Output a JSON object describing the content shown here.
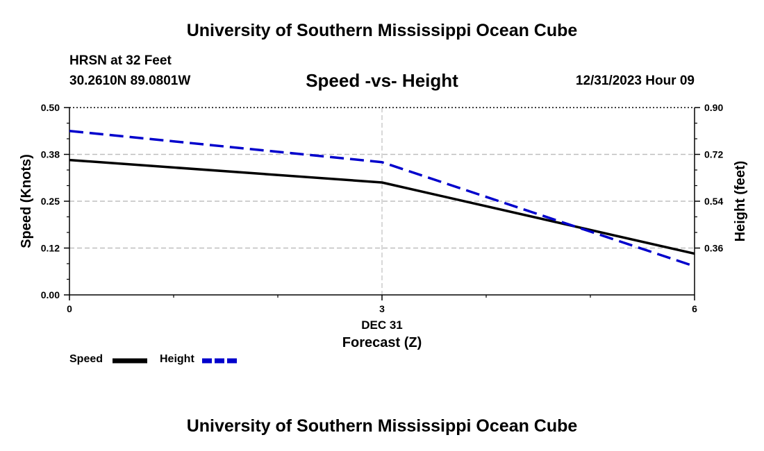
{
  "header": {
    "top_title": "University of Southern Mississippi Ocean Cube",
    "station_name": "HRSN at 32 Feet",
    "station_coords": "30.2610N  89.0801W",
    "subtitle": "Speed -vs- Height",
    "timestamp": "12/31/2023 Hour 09"
  },
  "footer": {
    "bottom_title": "University of Southern Mississippi Ocean Cube"
  },
  "legend": {
    "speed_label": "Speed",
    "height_label": "Height"
  },
  "chart_data": {
    "type": "line",
    "title": "Speed -vs- Height",
    "xlabel": "Forecast (Z)",
    "xdate_label": "DEC 31",
    "ylabel_left": "Speed (Knots)",
    "ylabel_right": "Height (feet)",
    "x": [
      0,
      3,
      6
    ],
    "x_ticks": [
      "0",
      "3",
      "6"
    ],
    "xlim": [
      0,
      6
    ],
    "ylim_left": [
      0,
      0.5
    ],
    "ylim_right": [
      0.18,
      0.9
    ],
    "left_ticks": [
      "0.00",
      "0.12",
      "0.25",
      "0.38",
      "0.50"
    ],
    "left_tick_values": [
      0,
      0.125,
      0.25,
      0.375,
      0.5
    ],
    "right_ticks": [
      "0.36",
      "0.54",
      "0.72",
      "0.90"
    ],
    "right_tick_values": [
      0.36,
      0.54,
      0.72,
      0.9
    ],
    "grid": true,
    "series": [
      {
        "name": "Speed",
        "axis": "left",
        "color": "#000000",
        "style": "solid",
        "values": [
          0.36,
          0.3,
          0.11
        ]
      },
      {
        "name": "Height",
        "axis": "right",
        "color": "#0000cc",
        "style": "dashed",
        "values": [
          0.81,
          0.69,
          0.29
        ]
      }
    ],
    "legend_position": "bottom-left"
  }
}
